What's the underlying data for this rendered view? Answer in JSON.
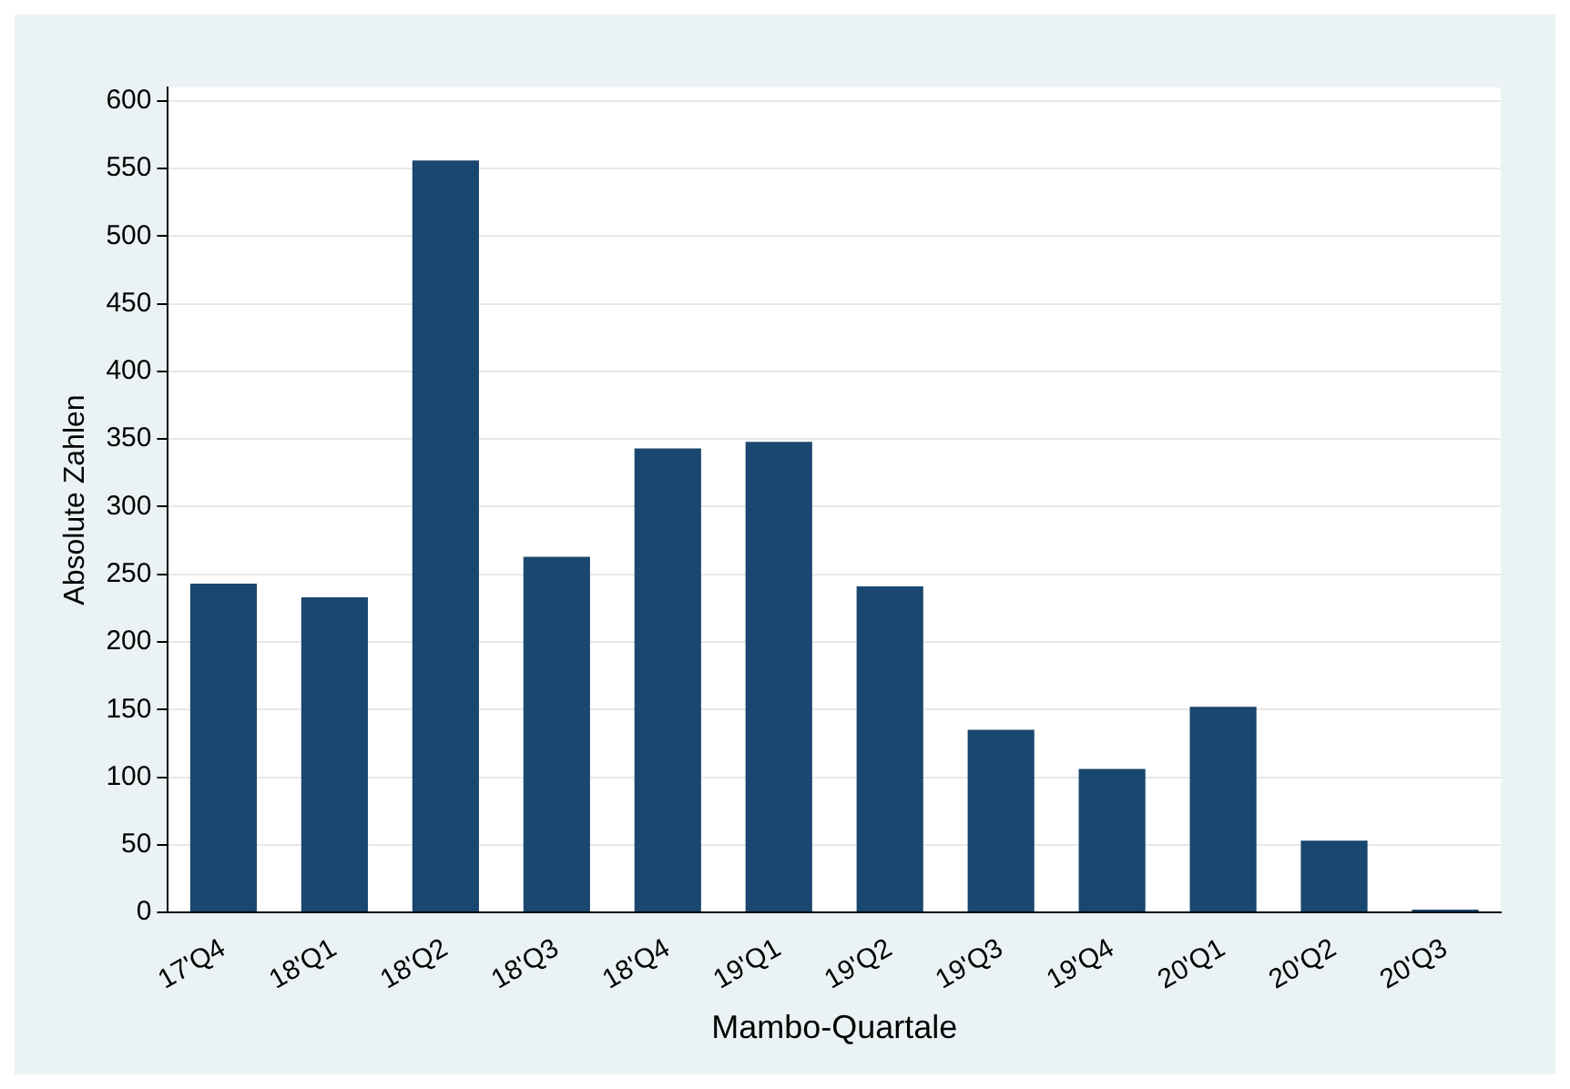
{
  "chart_data": {
    "type": "bar",
    "xlabel": "Mambo-Quartale",
    "ylabel": "Absolute Zahlen",
    "categories": [
      "17'Q4",
      "18'Q1",
      "18'Q2",
      "18'Q3",
      "18'Q4",
      "19'Q1",
      "19'Q2",
      "19'Q3",
      "19'Q4",
      "20'Q1",
      "20'Q2",
      "20'Q3"
    ],
    "values": [
      243,
      233,
      556,
      263,
      343,
      348,
      241,
      135,
      106,
      152,
      53,
      2
    ],
    "color": "#1a476f",
    "ylim": [
      0,
      610
    ],
    "yticks": [
      0,
      50,
      100,
      150,
      200,
      250,
      300,
      350,
      400,
      450,
      500,
      550,
      600
    ],
    "grid": "y",
    "legend": false
  }
}
